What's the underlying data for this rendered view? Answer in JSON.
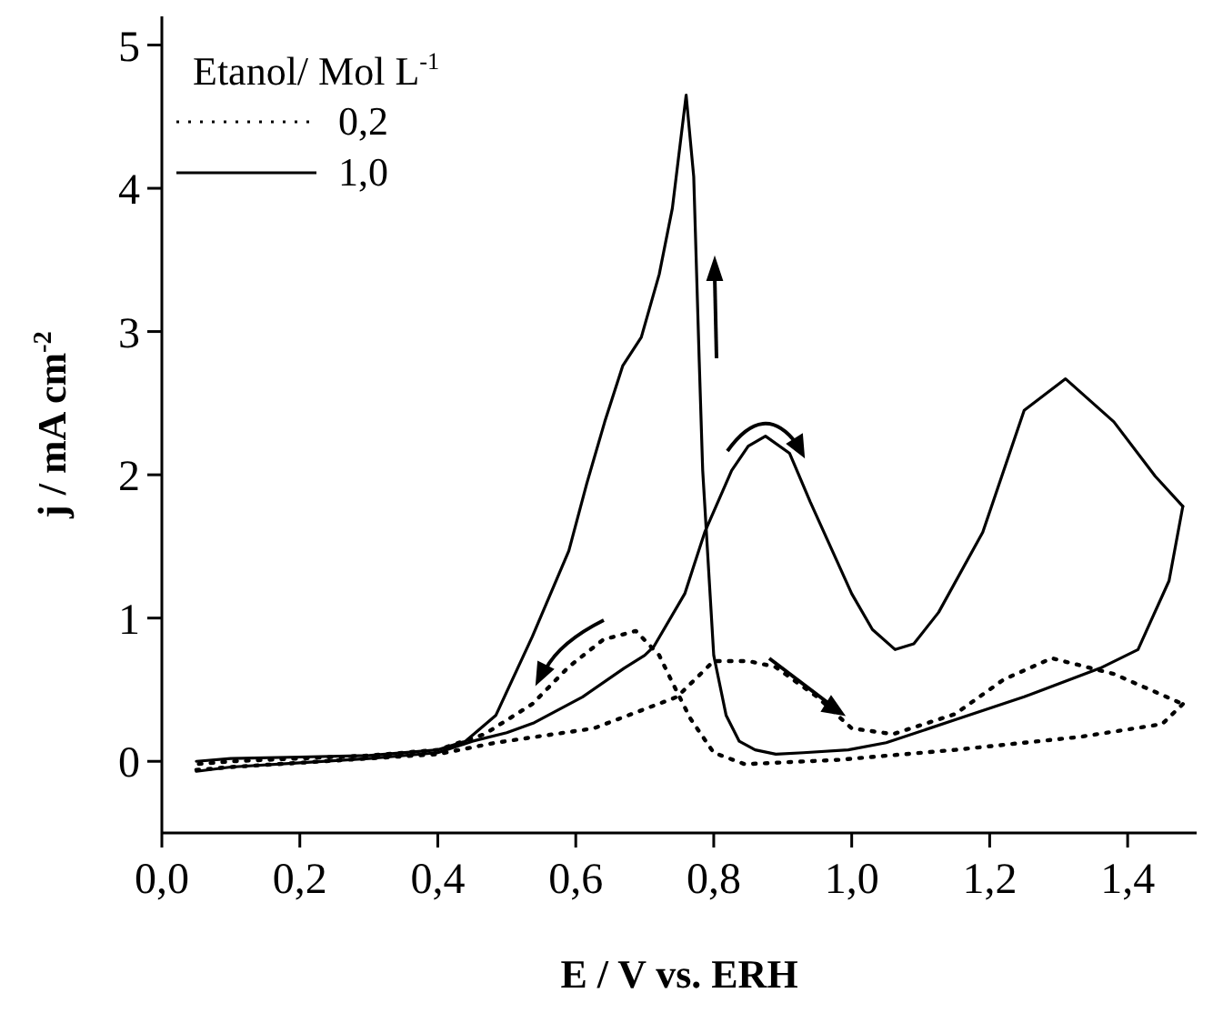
{
  "chart_data": {
    "type": "line",
    "xlabel": "E / V vs. ERH",
    "ylabel": "j / mA cm$^{-2}$",
    "legend_title": "Etanol/ Mol L$^{-1}$",
    "legend": "top left",
    "marker": "none",
    "xlim": [
      0,
      1.5
    ],
    "xticks": [
      {
        "value": 0,
        "label": "0,0"
      },
      {
        "value": 0.2,
        "label": "0,2"
      },
      {
        "value": 0.4,
        "label": "0,4"
      },
      {
        "value": 0.6,
        "label": "0,6"
      },
      {
        "value": 0.8,
        "label": "0,8"
      },
      {
        "value": 1,
        "label": "1,0"
      },
      {
        "value": 1.2,
        "label": "1,2"
      },
      {
        "value": 1.4,
        "label": "1,4"
      }
    ],
    "ylim": [
      -0.5,
      5.2
    ],
    "yticks": [
      0,
      1,
      2,
      3,
      4,
      5
    ],
    "series": [
      {
        "name": "0,2",
        "color": "#000000",
        "line_style": "dotted",
        "x": [
          0.05,
          0.1,
          0.2,
          0.3,
          0.4,
          0.484,
          0.626,
          0.747,
          0.8,
          0.85,
          0.889,
          0.95,
          1.0,
          1.06,
          1.15,
          1.22,
          1.29,
          1.38,
          1.48
        ],
        "values": [
          -0.06,
          -0.04,
          -0.01,
          0.02,
          0.05,
          0.13,
          0.23,
          0.45,
          0.7,
          0.7,
          0.66,
          0.45,
          0.23,
          0.19,
          0.33,
          0.57,
          0.72,
          0.61,
          0.4
        ]
      },
      {
        "color": "#000000",
        "line_style": "dotted",
        "x": [
          1.48,
          1.45,
          1.33,
          1.15,
          0.98,
          0.845,
          0.8,
          0.766,
          0.74,
          0.721,
          0.687,
          0.64,
          0.59,
          0.537,
          0.468,
          0.4,
          0.3,
          0.2,
          0.1,
          0.05
        ],
        "values": [
          0.4,
          0.26,
          0.17,
          0.08,
          0.01,
          -0.02,
          0.06,
          0.3,
          0.55,
          0.74,
          0.91,
          0.85,
          0.66,
          0.4,
          0.19,
          0.08,
          0.04,
          0.02,
          0.0,
          -0.02
        ]
      },
      {
        "name": "1,0",
        "color": "#000000",
        "line_style": "solid",
        "x": [
          0.05,
          0.1,
          0.2,
          0.3,
          0.4,
          0.45,
          0.5,
          0.54,
          0.61,
          0.67,
          0.7,
          0.713,
          0.758,
          0.787,
          0.826,
          0.85,
          0.875,
          0.91,
          0.94,
          1.0,
          1.03,
          1.063,
          1.09,
          1.126,
          1.19,
          1.25,
          1.31,
          1.38,
          1.44,
          1.48
        ],
        "values": [
          -0.07,
          -0.04,
          -0.01,
          0.02,
          0.06,
          0.14,
          0.2,
          0.27,
          0.45,
          0.65,
          0.74,
          0.8,
          1.17,
          1.6,
          2.03,
          2.2,
          2.27,
          2.15,
          1.81,
          1.17,
          0.92,
          0.78,
          0.82,
          1.04,
          1.6,
          2.45,
          2.67,
          2.37,
          1.99,
          1.78
        ]
      },
      {
        "color": "#000000",
        "line_style": "solid",
        "x": [
          1.48,
          1.46,
          1.415,
          1.36,
          1.25,
          1.15,
          1.05,
          0.995,
          0.93,
          0.89,
          0.86,
          0.837,
          0.818,
          0.8,
          0.784,
          0.779,
          0.771,
          0.76,
          0.74,
          0.721,
          0.695,
          0.668,
          0.642,
          0.616,
          0.59,
          0.537,
          0.484,
          0.44,
          0.4,
          0.3,
          0.2,
          0.1,
          0.05
        ],
        "values": [
          1.78,
          1.26,
          0.78,
          0.65,
          0.45,
          0.29,
          0.13,
          0.08,
          0.06,
          0.05,
          0.08,
          0.14,
          0.32,
          0.74,
          2.03,
          2.79,
          4.08,
          4.65,
          3.86,
          3.4,
          2.96,
          2.76,
          2.37,
          1.94,
          1.47,
          0.87,
          0.32,
          0.14,
          0.08,
          0.04,
          0.03,
          0.02,
          0.0
        ]
      }
    ]
  }
}
